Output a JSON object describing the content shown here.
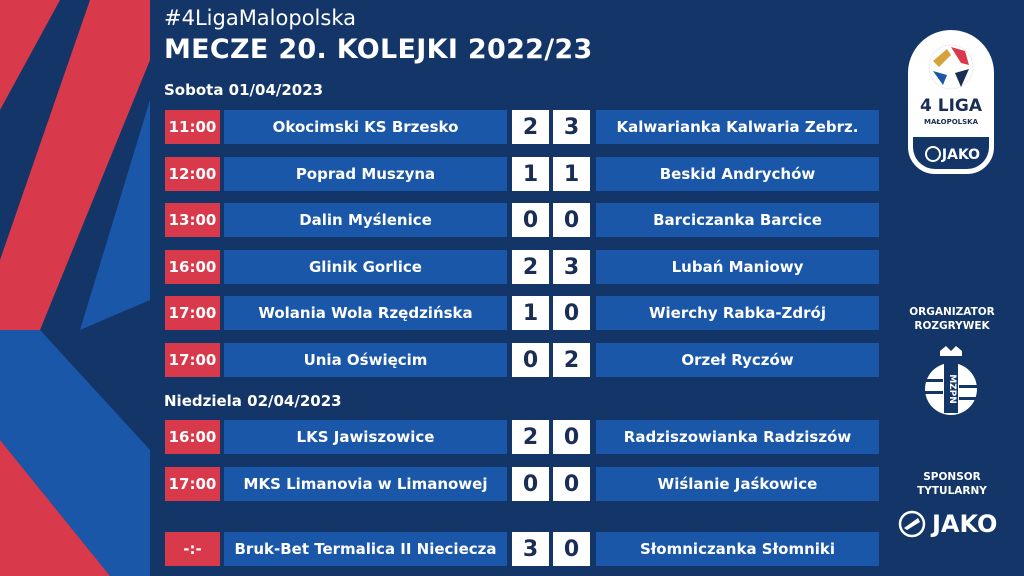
{
  "header": {
    "hashtag": "#4LigaMalopolska",
    "title": "MECZE 20. KOLEJKI 2022/23"
  },
  "days": [
    {
      "label": "Sobota 01/04/2023"
    },
    {
      "label": "Niedziela 02/04/2023"
    }
  ],
  "matches": [
    {
      "time": "11:00",
      "home": "Okocimski KS Brzesko",
      "home_score": "2",
      "away_score": "3",
      "away": "Kalwarianka Kalwaria Zebrz."
    },
    {
      "time": "12:00",
      "home": "Poprad Muszyna",
      "home_score": "1",
      "away_score": "1",
      "away": "Beskid Andrychów"
    },
    {
      "time": "13:00",
      "home": "Dalin Myślenice",
      "home_score": "0",
      "away_score": "0",
      "away": "Barciczanka Barcice"
    },
    {
      "time": "16:00",
      "home": "Glinik Gorlice",
      "home_score": "2",
      "away_score": "3",
      "away": "Lubań Maniowy"
    },
    {
      "time": "17:00",
      "home": "Wolania Wola Rzędzińska",
      "home_score": "1",
      "away_score": "0",
      "away": "Wierchy Rabka-Zdrój"
    },
    {
      "time": "17:00",
      "home": "Unia Oświęcim",
      "home_score": "0",
      "away_score": "2",
      "away": "Orzeł Ryczów"
    },
    {
      "time": "16:00",
      "home": "LKS Jawiszowice",
      "home_score": "2",
      "away_score": "0",
      "away": "Radziszowianka Radziszów"
    },
    {
      "time": "17:00",
      "home": "MKS Limanovia w Limanowej",
      "home_score": "0",
      "away_score": "0",
      "away": "Wiślanie Jaśkowice"
    },
    {
      "time": "-:-",
      "home": "Bruk-Bet Termalica II Nieciecza",
      "home_score": "3",
      "away_score": "0",
      "away": "Słomniczanka Słomniki"
    }
  ],
  "sidebar": {
    "league_logo": {
      "line1": "4 LIGA",
      "line2": "MAŁOPOLSKA",
      "sponsor": "JAKO"
    },
    "organizer_label": "ORGANIZATOR ROZGRYWEK",
    "organizer_logo": "MZPN",
    "sponsor_label": "SPONSOR TYTULARNY",
    "sponsor_name": "JAKO"
  },
  "colors": {
    "background": "#143568",
    "row": "#1b57a8",
    "time": "#d93a4b",
    "score_bg": "#ffffff",
    "score_text": "#1a2d55"
  }
}
